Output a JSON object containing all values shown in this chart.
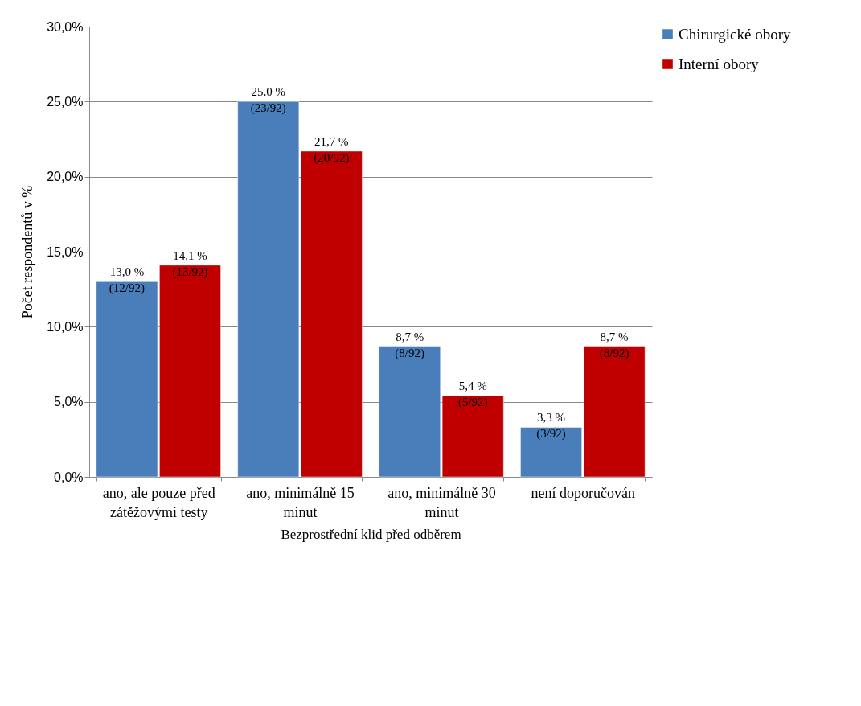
{
  "chart_data": {
    "type": "bar",
    "xlabel": "Bezprostřední klid před odběrem",
    "ylabel": "Počet respondentů v %",
    "categories": [
      "ano, ale pouze před\nzátěžovými testy",
      "ano, minimálně 15\nminut",
      "ano, minimálně 30\nminut",
      "není doporučován"
    ],
    "series": [
      {
        "name": "Chirurgické obory",
        "color": "#4a7ebb",
        "values": [
          13.0,
          25.0,
          8.7,
          3.3
        ],
        "value_labels": [
          "13,0 %\n(12/92)",
          "25,0 %\n(23/92)",
          "8,7 %\n(8/92)",
          "3,3 %\n(3/92)"
        ]
      },
      {
        "name": "Interní obory",
        "color": "#c00000",
        "values": [
          14.1,
          21.7,
          5.4,
          8.7
        ],
        "value_labels": [
          "14,1 %\n(13/92)",
          "21,7 %\n(20/92)",
          "5,4 %\n(5/92)",
          "8,7 %\n(8/92)"
        ]
      }
    ],
    "ylim": [
      0,
      30
    ],
    "yticks": [
      {
        "value": 0,
        "label": "0,0%"
      },
      {
        "value": 5,
        "label": "5,0%"
      },
      {
        "value": 10,
        "label": "10,0%"
      },
      {
        "value": 15,
        "label": "15,0%"
      },
      {
        "value": 20,
        "label": "20,0%"
      },
      {
        "value": 25,
        "label": "25,0%"
      },
      {
        "value": 30,
        "label": "30,0%"
      }
    ],
    "grid": "y",
    "legend": "right"
  }
}
